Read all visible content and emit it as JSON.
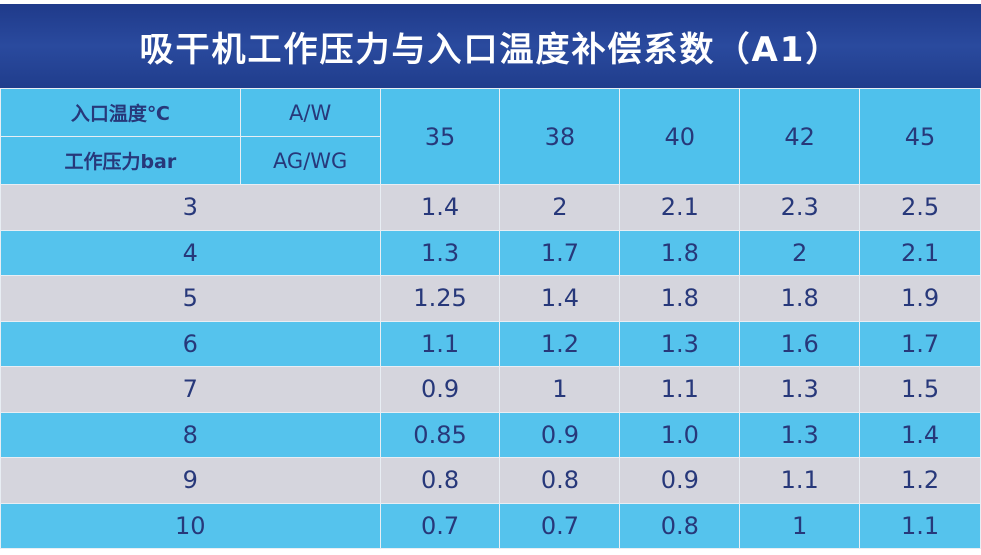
{
  "title": "吸干机工作压力与入口温度补偿系数（A1）",
  "header": {
    "row1_label": "入口温度℃",
    "row1_type": "A/W",
    "row2_label": "工作压力bar",
    "row2_type": "AG/WG",
    "temperatures": [
      "35",
      "38",
      "40",
      "42",
      "45"
    ]
  },
  "rows": [
    {
      "pressure": "3",
      "values": [
        "1.4",
        "2",
        "2.1",
        "2.3",
        "2.5"
      ]
    },
    {
      "pressure": "4",
      "values": [
        "1.3",
        "1.7",
        "1.8",
        "2",
        "2.1"
      ]
    },
    {
      "pressure": "5",
      "values": [
        "1.25",
        "1.4",
        "1.8",
        "1.8",
        "1.9"
      ]
    },
    {
      "pressure": "6",
      "values": [
        "1.1",
        "1.2",
        "1.3",
        "1.6",
        "1.7"
      ]
    },
    {
      "pressure": "7",
      "values": [
        "0.9",
        "1",
        "1.1",
        "1.3",
        "1.5"
      ]
    },
    {
      "pressure": "8",
      "values": [
        "0.85",
        "0.9",
        "1.0",
        "1.3",
        "1.4"
      ]
    },
    {
      "pressure": "9",
      "values": [
        "0.8",
        "0.8",
        "0.9",
        "1.1",
        "1.2"
      ]
    },
    {
      "pressure": "10",
      "values": [
        "0.7",
        "0.7",
        "0.8",
        "1",
        "1.1"
      ]
    }
  ],
  "colors": {
    "title_bg": "#1f3a8a",
    "header_bg": "#4fc1ec",
    "row_gray": "#d5d5dd",
    "row_blue": "#55c3ed",
    "text": "#27387a"
  }
}
